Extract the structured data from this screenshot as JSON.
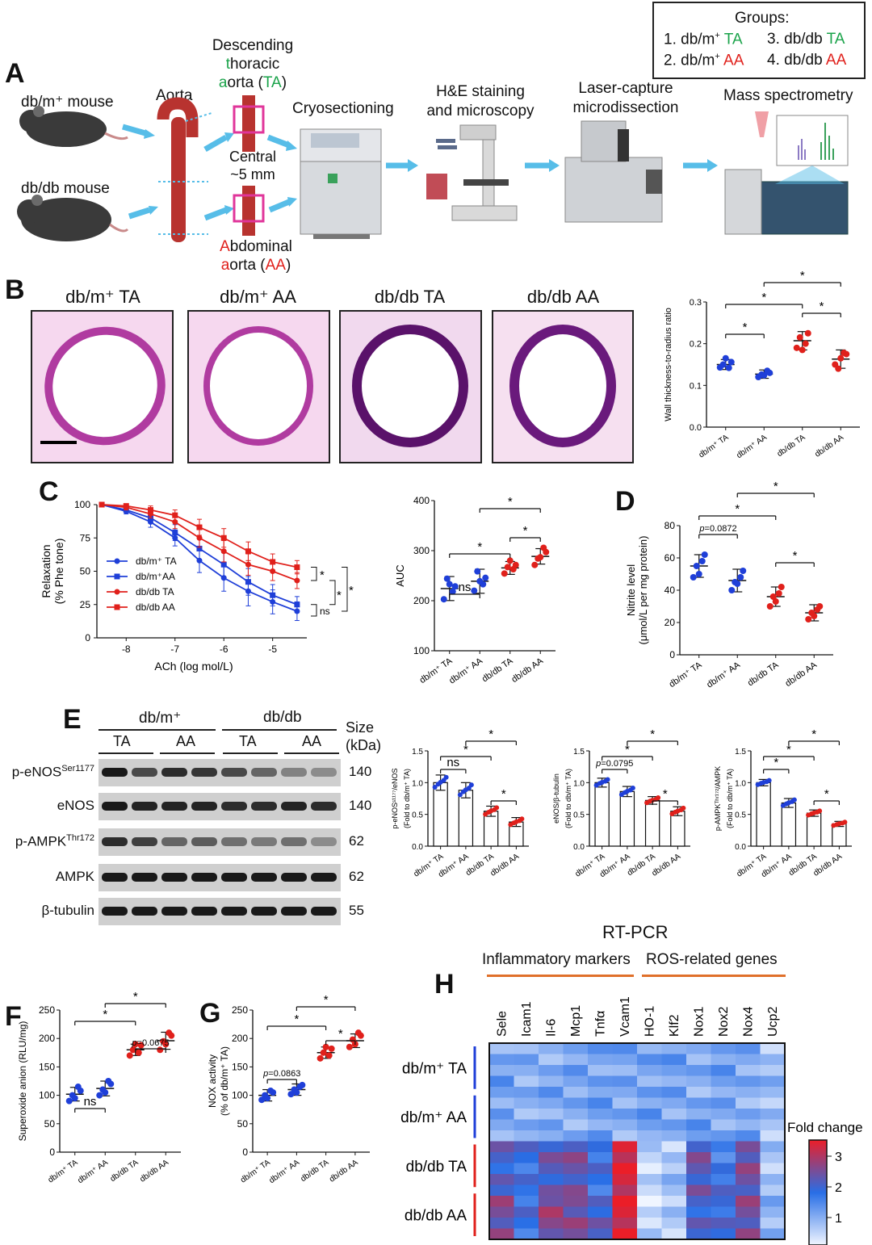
{
  "groups_box": {
    "title": "Groups:",
    "g1": "1. db/m",
    "g1b": "TA",
    "g3": "3. db/db",
    "g3b": "TA",
    "g2": "2. db/m",
    "g2b": "AA",
    "g4": "4. db/db",
    "g4b": "AA"
  },
  "panelA": {
    "label": "A",
    "dbm_mouse": "db/m⁺ mouse",
    "dbdb_mouse": "db/db mouse",
    "aorta": "Aorta",
    "dta1": "Descending",
    "dta2a": "t",
    "dta2b": "horacic",
    "dta3a": "a",
    "dta3b": "orta (",
    "dta3c": "TA",
    "dta3d": ")",
    "central1": "Central",
    "central2": "~5 mm",
    "aa1a": "A",
    "aa1b": "bdominal",
    "aa2a": "a",
    "aa2b": "orta (",
    "aa2c": "AA",
    "aa2d": ")",
    "cryo": "Cryosectioning",
    "he1": "H&E staining",
    "he2": "and microscopy",
    "lcm1": "Laser-capture",
    "lcm2": "microdissection",
    "ms": "Mass spectrometry"
  },
  "panelB": {
    "label": "B",
    "titles": [
      "db/m⁺ TA",
      "db/m⁺ AA",
      "db/db TA",
      "db/db AA"
    ],
    "chart_data": {
      "type": "scatter",
      "ylabel": "Wall thickness-to-radius ratio",
      "ylim": [
        0,
        0.3
      ],
      "yticks": [
        "0.0",
        "0.1",
        "0.2",
        "0.3"
      ],
      "categories": [
        "db/m⁺ TA",
        "db/m⁺ AA",
        "db/db TA",
        "db/db AA"
      ],
      "means": [
        0.15,
        0.127,
        0.207,
        0.163
      ],
      "sd": [
        0.012,
        0.01,
        0.022,
        0.022
      ],
      "points": [
        [
          0.143,
          0.156,
          0.15,
          0.142,
          0.165
        ],
        [
          0.12,
          0.13,
          0.126,
          0.135,
          0.124
        ],
        [
          0.19,
          0.225,
          0.215,
          0.2,
          0.185
        ],
        [
          0.15,
          0.175,
          0.14,
          0.178,
          0.165
        ]
      ],
      "sig": [
        "*",
        "*",
        "*",
        "*"
      ]
    }
  },
  "panelC": {
    "label": "C",
    "chart_data": {
      "type": "line",
      "ylabel": "Relaxation",
      "ylabel2": "(% Phe tone)",
      "xlabel": "ACh (log mol/L)",
      "xticks": [
        "-8",
        "-7",
        "-6",
        "-5"
      ],
      "yticks": [
        "0",
        "25",
        "50",
        "75",
        "100"
      ],
      "x": [
        -8.5,
        -8,
        -7.5,
        -7,
        -6.5,
        -6,
        -5.5,
        -5,
        -4.5
      ],
      "series": [
        {
          "name": "db/m⁺ TA",
          "color": "#1f3fd8",
          "marker": "circle",
          "values": [
            100,
            95,
            87,
            75,
            58,
            45,
            35,
            27,
            20
          ],
          "err": [
            0,
            2,
            4,
            6,
            9,
            10,
            11,
            9,
            7
          ]
        },
        {
          "name": "db/m⁺AA",
          "color": "#1f3fd8",
          "marker": "square",
          "values": [
            100,
            96,
            90,
            79,
            67,
            55,
            42,
            32,
            25
          ],
          "err": [
            0,
            2,
            4,
            6,
            8,
            9,
            10,
            8,
            6
          ]
        },
        {
          "name": "db/db TA",
          "color": "#e0201b",
          "marker": "circle",
          "values": [
            100,
            98,
            93,
            87,
            75,
            65,
            55,
            50,
            43
          ],
          "err": [
            0,
            2,
            3,
            5,
            7,
            8,
            8,
            7,
            6
          ]
        },
        {
          "name": "db/db AA",
          "color": "#e0201b",
          "marker": "square",
          "values": [
            100,
            99,
            96,
            92,
            83,
            75,
            65,
            57,
            53
          ],
          "err": [
            0,
            1,
            3,
            4,
            6,
            7,
            7,
            6,
            5
          ]
        }
      ],
      "sig": [
        "*",
        "*",
        "*",
        "ns"
      ]
    },
    "auc": {
      "type": "scatter",
      "ylabel": "AUC",
      "ylim": [
        100,
        450
      ],
      "yticks": [
        "100",
        "200",
        "300",
        "400"
      ],
      "categories": [
        "db/m⁺ TA",
        "db/m⁺ AA",
        "db/db TA",
        "db/db AA"
      ],
      "means": [
        245,
        262,
        293,
        320
      ],
      "sd": [
        28,
        28,
        15,
        18
      ],
      "points": [
        [
          220,
          250,
          268,
          238,
          255
        ],
        [
          240,
          270,
          285,
          255,
          262
        ],
        [
          280,
          300,
          295,
          290,
          310
        ],
        [
          300,
          330,
          315,
          340,
          318
        ]
      ],
      "sig": [
        "ns",
        "*",
        "*",
        "*"
      ]
    }
  },
  "panelD": {
    "label": "D",
    "chart_data": {
      "type": "scatter",
      "ylabel": "Nitrite level",
      "ylabel2": "(μmol/L per mg protein)",
      "ylim": [
        0,
        80
      ],
      "yticks": [
        "0",
        "20",
        "40",
        "60",
        "80"
      ],
      "categories": [
        "db/m⁺ TA",
        "db/m⁺ AA",
        "db/db TA",
        "db/db AA"
      ],
      "means": [
        55,
        46,
        36,
        26
      ],
      "sd": [
        7,
        7,
        6,
        5
      ],
      "points": [
        [
          48,
          62,
          55,
          58,
          50
        ],
        [
          40,
          52,
          45,
          48,
          44
        ],
        [
          30,
          42,
          36,
          38,
          33
        ],
        [
          22,
          30,
          26,
          28,
          24
        ]
      ],
      "sig": [
        "p=0.0872",
        "*",
        "*",
        "*"
      ]
    }
  },
  "panelE": {
    "label": "E",
    "grp1": "db/m⁺",
    "grp2": "db/db",
    "ta1": "TA",
    "aa1": "AA",
    "ta2": "TA",
    "aa2": "AA",
    "size": "Size",
    "kda": "(kDa)",
    "rows": [
      {
        "name": "p-eNOS",
        "sup": "Ser1177",
        "kda": "140"
      },
      {
        "name": "eNOS",
        "sup": "",
        "kda": "140"
      },
      {
        "name": "p-AMPK",
        "sup": "Thr172",
        "kda": "62"
      },
      {
        "name": "AMPK",
        "sup": "",
        "kda": "62"
      },
      {
        "name": "β-tubulin",
        "sup": "",
        "kda": "55"
      }
    ],
    "charts": [
      {
        "type": "bar",
        "ylabel": "p-eNOSˢ¹¹⁷⁷/eNOS",
        "ylabel2": "(Fold to db/m⁺ TA)",
        "ylim": [
          0,
          1.5
        ],
        "yticks": [
          "0.0",
          "0.5",
          "1.0",
          "1.5"
        ],
        "values": [
          1.0,
          0.88,
          0.55,
          0.38
        ],
        "sd": [
          0.12,
          0.12,
          0.08,
          0.07
        ],
        "sig": [
          "ns",
          "*",
          "*",
          "*"
        ]
      },
      {
        "type": "bar",
        "ylabel": "eNOS/β-tubulin",
        "ylabel2": "(Fold to db/m⁺ TA)",
        "ylim": [
          0,
          1.5
        ],
        "yticks": [
          "0.0",
          "0.5",
          "1.0",
          "1.5"
        ],
        "values": [
          1.0,
          0.86,
          0.72,
          0.55
        ],
        "sd": [
          0.07,
          0.08,
          0.06,
          0.07
        ],
        "sig": [
          "p=0.0795",
          "*",
          "*",
          "*"
        ]
      },
      {
        "type": "bar",
        "ylabel": "p-AMPKᵀʰʳ¹⁷²/AMPK",
        "ylabel2": "(Fold to db/m⁺ TA)",
        "ylim": [
          0,
          1.5
        ],
        "yticks": [
          "0.0",
          "0.5",
          "1.0",
          "1.5"
        ],
        "values": [
          1.0,
          0.68,
          0.52,
          0.35
        ],
        "sd": [
          0.05,
          0.07,
          0.05,
          0.04
        ],
        "sig": [
          "*",
          "*",
          "*",
          "*"
        ]
      }
    ],
    "categories": [
      "db/m⁺ TA",
      "db/m⁺ AA",
      "db/db TA",
      "db/db AA"
    ]
  },
  "panelF": {
    "label": "F",
    "chart_data": {
      "type": "scatter",
      "ylabel": "Superoxide anion (RLU/mg)",
      "ylim": [
        0,
        250
      ],
      "yticks": [
        "0",
        "50",
        "100",
        "150",
        "200",
        "250"
      ],
      "categories": [
        "db/m⁺ TA",
        "db/m⁺ AA",
        "db/db TA",
        "db/db AA"
      ],
      "means": [
        102,
        112,
        180,
        196
      ],
      "sd": [
        12,
        13,
        10,
        15
      ],
      "points": [
        [
          90,
          108,
          100,
          115,
          95
        ],
        [
          100,
          120,
          110,
          125,
          105
        ],
        [
          170,
          188,
          180,
          175,
          190
        ],
        [
          180,
          205,
          195,
          210,
          190
        ]
      ],
      "sig": [
        "ns",
        "*",
        "*",
        "p=0.0675"
      ]
    }
  },
  "panelG": {
    "label": "G",
    "chart_data": {
      "type": "scatter",
      "ylabel": "NOX activity",
      "ylabel2": "(% of db/m⁺ TA)",
      "ylim": [
        0,
        250
      ],
      "yticks": [
        "0",
        "50",
        "100",
        "150",
        "200",
        "250"
      ],
      "categories": [
        "db/m⁺ TA",
        "db/m⁺ AA",
        "db/db TA",
        "db/db AA"
      ],
      "means": [
        100,
        110,
        175,
        196
      ],
      "sd": [
        10,
        10,
        10,
        12
      ],
      "points": [
        [
          92,
          105,
          100,
          108,
          95
        ],
        [
          102,
          118,
          110,
          115,
          105
        ],
        [
          165,
          182,
          175,
          170,
          185
        ],
        [
          185,
          205,
          198,
          210,
          190
        ]
      ],
      "sig": [
        "p=0.0863",
        "*",
        "*",
        "*"
      ]
    }
  },
  "panelH": {
    "label": "H",
    "title": "RT-PCR",
    "infl": "Inflammatory markers",
    "ros": "ROS-related genes",
    "genes": [
      "Sele",
      "Icam1",
      "Il-6",
      "Mcp1",
      "Tnfα",
      "Vcam1",
      "HO-1",
      "Klf2",
      "Nox1",
      "Nox2",
      "Nox4",
      "Ucp2"
    ],
    "rows": [
      "db/m⁺ TA",
      "db/m⁺ AA",
      "db/db TA",
      "db/db AA"
    ],
    "legend_title": "Fold change",
    "legend_ticks": [
      "3",
      "2",
      "1"
    ],
    "chart_data": {
      "type": "heatmap",
      "scale": [
        0.8,
        3.3
      ]
    }
  }
}
